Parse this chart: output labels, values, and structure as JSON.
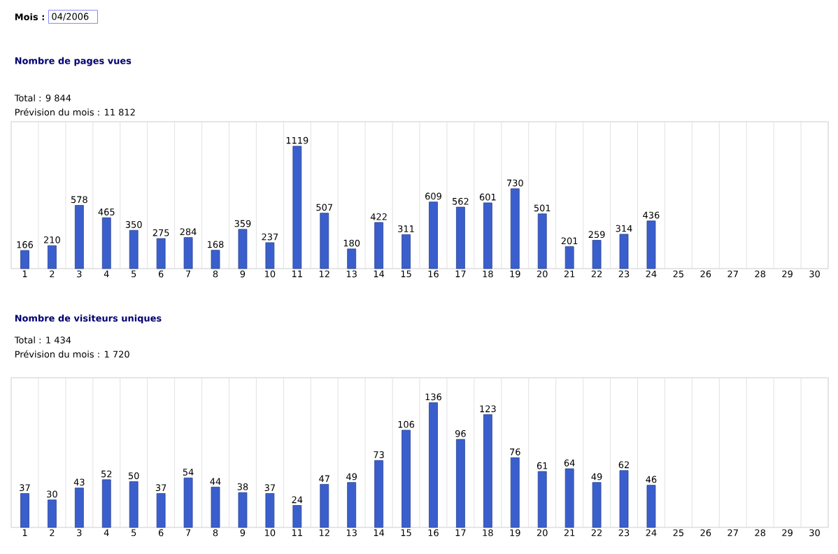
{
  "chart_data": [
    {
      "type": "bar",
      "title": "Nombre de pages vues",
      "annotations": [
        "Mois :",
        "04/2006",
        "Total : 9 844",
        "Prévision du mois : 11 812"
      ],
      "categories": [
        "1",
        "2",
        "3",
        "4",
        "5",
        "6",
        "7",
        "8",
        "9",
        "10",
        "11",
        "12",
        "13",
        "14",
        "15",
        "16",
        "17",
        "18",
        "19",
        "20",
        "21",
        "22",
        "23",
        "24",
        "25",
        "26",
        "27",
        "28",
        "29",
        "30"
      ],
      "values": [
        166,
        210,
        578,
        465,
        350,
        275,
        284,
        168,
        359,
        237,
        1119,
        507,
        180,
        422,
        311,
        609,
        562,
        601,
        730,
        501,
        201,
        259,
        314,
        436,
        null,
        null,
        null,
        null,
        null,
        null
      ],
      "color": "#3a5fcd",
      "data_labels": true,
      "grid": "x"
    },
    {
      "type": "bar",
      "title": "Nombre de visiteurs uniques",
      "annotations": [
        "Total : 1 434",
        "Prévision du mois : 1 720"
      ],
      "categories": [
        "1",
        "2",
        "3",
        "4",
        "5",
        "6",
        "7",
        "8",
        "9",
        "10",
        "11",
        "12",
        "13",
        "14",
        "15",
        "16",
        "17",
        "18",
        "19",
        "20",
        "21",
        "22",
        "23",
        "24",
        "25",
        "26",
        "27",
        "28",
        "29",
        "30"
      ],
      "values": [
        37,
        30,
        43,
        52,
        50,
        37,
        54,
        44,
        38,
        37,
        24,
        47,
        49,
        73,
        106,
        136,
        96,
        123,
        76,
        61,
        64,
        49,
        62,
        46,
        null,
        null,
        null,
        null,
        null,
        null
      ],
      "color": "#3a5fcd",
      "data_labels": true,
      "grid": "x"
    }
  ]
}
